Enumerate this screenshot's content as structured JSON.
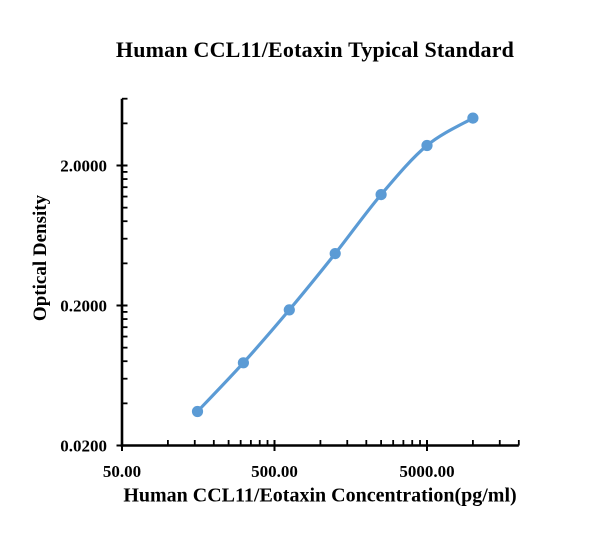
{
  "title": "Human CCL11/Eotaxin Typical Standard",
  "accent_color": "#5B9BD5",
  "chart_data": {
    "type": "line",
    "title": "Human CCL11/Eotaxin Typical Standard",
    "xlabel": "Human CCL11/Eotaxin Concentration(pg/ml)",
    "ylabel": "Optical Density",
    "x_scale": "log",
    "y_scale": "log",
    "grid": "off",
    "legend": "none",
    "smooth_line": true,
    "line_color": "#5B9BD5",
    "marker": "circle",
    "series": [
      {
        "name": "Typical Standard",
        "x": [
          156.25,
          312.5,
          625,
          1250,
          2500,
          5000,
          10000
        ],
        "y": [
          0.035,
          0.078,
          0.186,
          0.47,
          1.24,
          2.78,
          4.36
        ]
      }
    ],
    "x_axis": {
      "min": 50,
      "max": 20000,
      "majors": [
        50,
        500,
        5000
      ],
      "labels": [
        "50.00",
        "500.00",
        "5000.00"
      ]
    },
    "y_axis": {
      "min": 0.02,
      "max": 6,
      "majors": [
        0.02,
        0.2,
        2
      ],
      "labels": [
        "0.0200",
        "0.2000",
        "2.0000"
      ]
    }
  }
}
